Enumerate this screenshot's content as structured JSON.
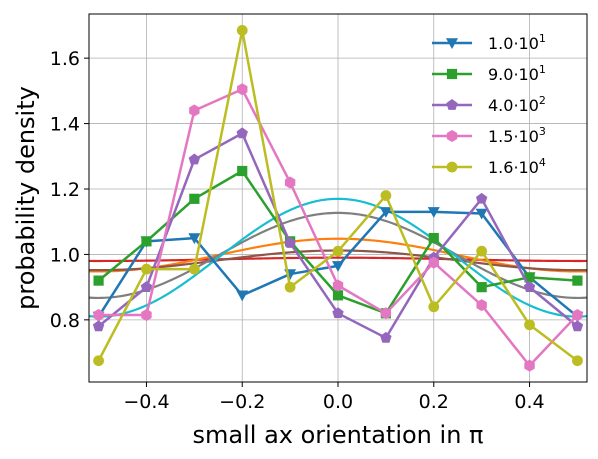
{
  "chart_data": {
    "type": "line",
    "title": "",
    "xlabel": "small ax orientation  in π",
    "ylabel": "probability density",
    "xlim": [
      -0.52,
      0.52
    ],
    "ylim": [
      0.61,
      1.735
    ],
    "x_ticks": [
      -0.4,
      -0.2,
      0.0,
      0.2,
      0.4
    ],
    "x_tick_labels": [
      "−0.4",
      "−0.2",
      "0.0",
      "0.2",
      "0.4"
    ],
    "y_ticks": [
      0.8,
      1.0,
      1.2,
      1.4,
      1.6
    ],
    "y_tick_labels": [
      "0.8",
      "1.0",
      "1.2",
      "1.4",
      "1.6"
    ],
    "grid": true,
    "legend_position": "top-right",
    "x": [
      -0.5,
      -0.4,
      -0.3,
      -0.2,
      -0.1,
      0.0,
      0.1,
      0.2,
      0.3,
      0.4,
      0.5
    ],
    "series": [
      {
        "name": "1.0·10^1",
        "legend": {
          "base": "1.0·10",
          "exp": "1"
        },
        "color": "#1f77b4",
        "marker": "triangle-down",
        "values": [
          0.81,
          1.04,
          1.05,
          0.875,
          0.94,
          0.965,
          1.13,
          1.13,
          1.125,
          0.93,
          0.81
        ]
      },
      {
        "name": "9.0·10^1",
        "legend": {
          "base": "9.0·10",
          "exp": "1"
        },
        "color": "#2ca02c",
        "marker": "square",
        "values": [
          0.92,
          1.04,
          1.17,
          1.255,
          1.04,
          0.875,
          0.82,
          1.05,
          0.9,
          0.93,
          0.92
        ]
      },
      {
        "name": "4.0·10^2",
        "legend": {
          "base": "4.0·10",
          "exp": "2"
        },
        "color": "#9467bd",
        "marker": "pentagon",
        "values": [
          0.78,
          0.9,
          1.29,
          1.37,
          1.035,
          0.82,
          0.745,
          0.99,
          1.17,
          0.9,
          0.78
        ]
      },
      {
        "name": "1.5·10^3",
        "legend": {
          "base": "1.5·10",
          "exp": "3"
        },
        "color": "#e377c2",
        "marker": "hexagon",
        "values": [
          0.815,
          0.815,
          1.44,
          1.505,
          1.22,
          0.905,
          0.82,
          0.975,
          0.845,
          0.66,
          0.815
        ]
      },
      {
        "name": "1.6·10^4",
        "legend": {
          "base": "1.6·10",
          "exp": "4"
        },
        "color": "#bcbd22",
        "marker": "circle",
        "values": [
          0.675,
          0.955,
          0.955,
          1.685,
          0.9,
          1.01,
          1.18,
          0.84,
          1.01,
          0.785,
          0.675
        ]
      }
    ],
    "fit_curves": [
      {
        "color": "#d62728",
        "amplitude": 0.005,
        "offset": 0.985
      },
      {
        "color": "#ff7f0e",
        "amplitude": 0.05,
        "offset": 0.998
      },
      {
        "color": "#8c564b",
        "amplitude": 0.03,
        "offset": 0.982
      },
      {
        "color": "#7f7f7f",
        "amplitude": 0.13,
        "offset": 0.997
      },
      {
        "color": "#17becf",
        "amplitude": 0.18,
        "offset": 0.99
      }
    ]
  }
}
